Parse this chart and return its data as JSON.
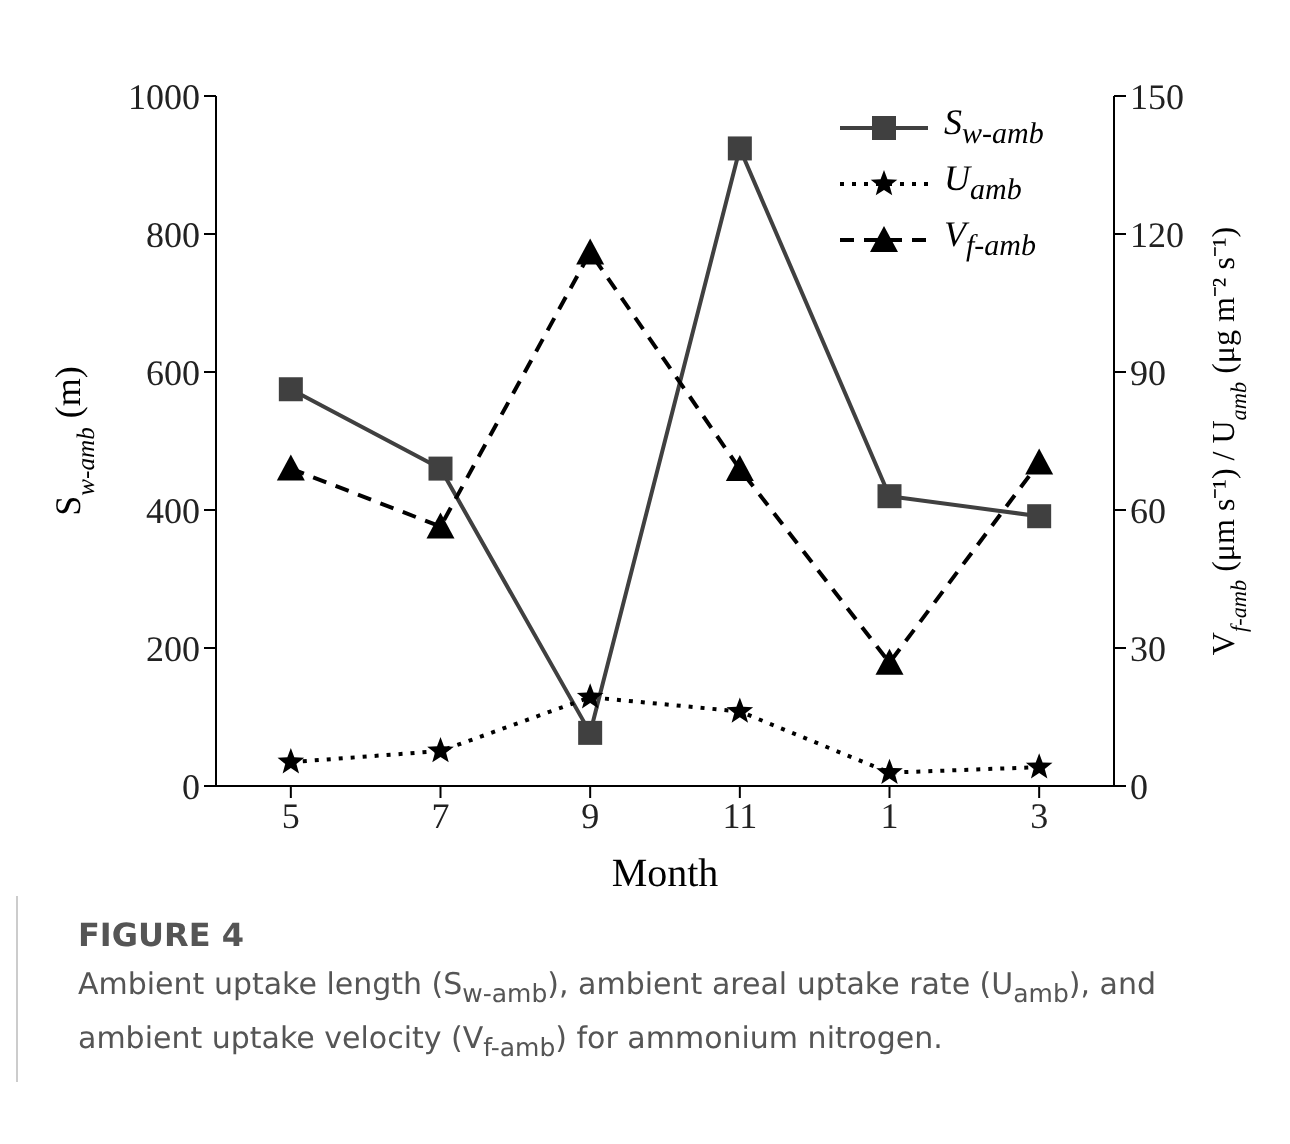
{
  "chart_data": {
    "type": "line",
    "xlabel": "Month",
    "ylabel": "S$_{w-amb}$ (m)",
    "y2label": "V$_{f-amb}$ (μm s⁻¹) / U$_{amb}$ (μg m⁻² s⁻¹)",
    "categories": [
      "5",
      "7",
      "9",
      "11",
      "1",
      "3"
    ],
    "series": [
      {
        "name": "S$_{w-amb}$",
        "color": "#404040",
        "marker": "square",
        "line_style": "solid",
        "values": [
          575,
          460,
          77,
          924,
          420,
          391
        ]
      },
      {
        "name": "U$_{amb}$",
        "color": "#000000",
        "marker": "star",
        "line_style": "dotted",
        "axis": "y2",
        "values": [
          5.2,
          7.6,
          19.3,
          16.2,
          2.9,
          4.1
        ]
      },
      {
        "name": "V$_{f-amb}$",
        "color": "#000000",
        "marker": "triangle",
        "line_style": "dashed",
        "axis": "y2",
        "values": [
          69,
          56.4,
          116,
          68.9,
          26.8,
          70.3
        ]
      }
    ],
    "ylim": [
      0,
      1000
    ],
    "yticks": [
      0,
      200,
      400,
      600,
      800,
      1000
    ],
    "y2lim": [
      0,
      150
    ],
    "y2ticks": [
      0,
      30,
      60,
      90,
      120,
      150
    ],
    "legend": "top right",
    "grid": false,
    "annotations": [
      "FIGURE 4",
      "Ambient uptake length (S$_{w-amb}$), ambient areal uptake rate (U$_{amb}$), and ambient uptake velocity (V$_{f-amb}$) for ammonium nitrogen."
    ]
  }
}
